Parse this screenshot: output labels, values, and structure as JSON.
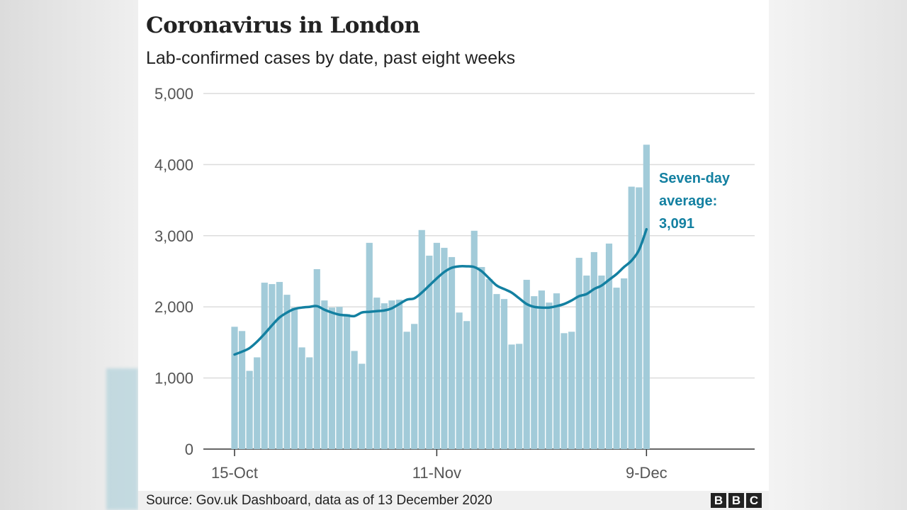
{
  "chart_data": {
    "type": "bar",
    "title": "Coronavirus in London",
    "subtitle": "Lab-confirmed cases by date, past eight weeks",
    "xlabel": "",
    "ylabel": "",
    "ylim": [
      0,
      5000
    ],
    "yticks": [
      "0",
      "1,000",
      "2,000",
      "3,000",
      "4,000",
      "5,000"
    ],
    "yticks_values": [
      0,
      1000,
      2000,
      3000,
      4000,
      5000
    ],
    "xticks": [
      "15-Oct",
      "11-Nov",
      "9-Dec"
    ],
    "xticks_index": [
      0,
      27,
      55
    ],
    "grid": true,
    "bar_color": "#a2cbd9",
    "line_color": "#1380a1",
    "values": [
      1720,
      1660,
      1100,
      1290,
      2340,
      2320,
      2350,
      2170,
      1990,
      1430,
      1290,
      2530,
      2090,
      1990,
      2000,
      1900,
      1380,
      1200,
      2900,
      2130,
      2050,
      2090,
      2100,
      1650,
      1760,
      3080,
      2720,
      2900,
      2830,
      2700,
      1920,
      1800,
      3070,
      2560,
      2390,
      2180,
      2110,
      1470,
      1480,
      2380,
      2150,
      2230,
      2060,
      2190,
      1630,
      1650,
      2690,
      2440,
      2770,
      2440,
      2890,
      2270,
      2400,
      3690,
      3680,
      4280
    ],
    "seven_day_average": [
      1330,
      1370,
      1420,
      1510,
      1620,
      1740,
      1850,
      1920,
      1970,
      1990,
      2000,
      2010,
      1960,
      1920,
      1890,
      1880,
      1870,
      1920,
      1930,
      1940,
      1950,
      1980,
      2040,
      2100,
      2120,
      2200,
      2300,
      2400,
      2490,
      2550,
      2570,
      2570,
      2560,
      2500,
      2400,
      2300,
      2250,
      2200,
      2120,
      2040,
      2000,
      1990,
      1990,
      2010,
      2040,
      2090,
      2150,
      2180,
      2250,
      2300,
      2380,
      2460,
      2560,
      2650,
      2800,
      3091
    ],
    "annotation": [
      "Seven-day",
      "average:",
      "3,091"
    ]
  },
  "footer": {
    "source": "Source: Gov.uk Dashboard, data as of 13 December 2020",
    "logo": [
      "B",
      "B",
      "C"
    ]
  }
}
